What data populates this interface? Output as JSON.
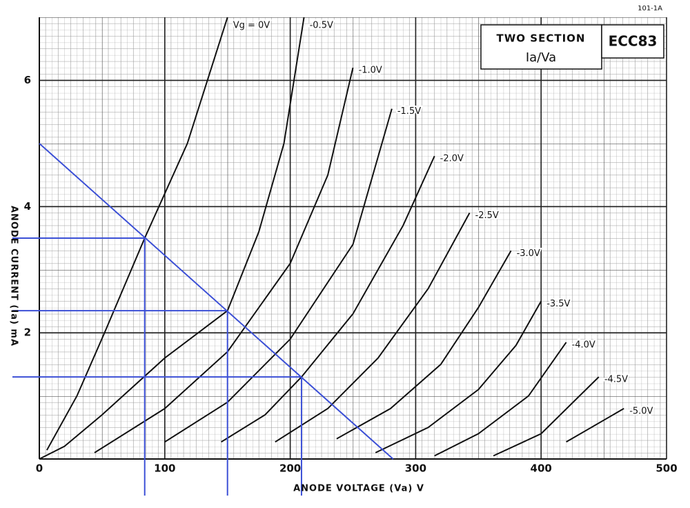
{
  "chart_data": {
    "type": "line",
    "code": "101-1A",
    "box": {
      "title": "TWO SECTION",
      "subtitle": "Ia/Va",
      "tube": "ECC83"
    },
    "xlabel": "ANODE VOLTAGE (Va) V",
    "ylabel": "ANODE CURRENT (Ia) mA",
    "xlim": [
      0,
      500
    ],
    "ylim": [
      0,
      7
    ],
    "xticks": [
      0,
      100,
      200,
      300,
      400,
      500
    ],
    "yticks": [
      2,
      4,
      6
    ],
    "grid": true,
    "series": [
      {
        "name": "Vg = 0V",
        "color": "#111111",
        "x": [
          6,
          30,
          52,
          84,
          118,
          134,
          150
        ],
        "values": [
          0.14,
          1.0,
          2.0,
          3.5,
          5.0,
          6.0,
          7.0
        ]
      },
      {
        "name": "-0.5V",
        "color": "#111111",
        "x": [
          0,
          20,
          50,
          100,
          150,
          175,
          195,
          211
        ],
        "values": [
          0,
          0.2,
          0.7,
          1.6,
          2.35,
          3.6,
          5.0,
          7.0
        ]
      },
      {
        "name": "-1.0V",
        "color": "#111111",
        "x": [
          44,
          100,
          150,
          200,
          230,
          250
        ],
        "values": [
          0.1,
          0.8,
          1.7,
          3.1,
          4.5,
          6.2
        ]
      },
      {
        "name": "-1.5V",
        "color": "#111111",
        "x": [
          100,
          150,
          200,
          250,
          281
        ],
        "values": [
          0.27,
          0.9,
          1.9,
          3.4,
          5.55
        ]
      },
      {
        "name": "-2.0V",
        "color": "#111111",
        "x": [
          145,
          180,
          209,
          250,
          290,
          315
        ],
        "values": [
          0.27,
          0.7,
          1.3,
          2.3,
          3.7,
          4.8
        ]
      },
      {
        "name": "-2.5V",
        "color": "#111111",
        "x": [
          188,
          230,
          270,
          310,
          343
        ],
        "values": [
          0.27,
          0.8,
          1.6,
          2.7,
          3.9
        ]
      },
      {
        "name": "-3.0V",
        "color": "#111111",
        "x": [
          237,
          280,
          320,
          350,
          376
        ],
        "values": [
          0.32,
          0.8,
          1.5,
          2.4,
          3.3
        ]
      },
      {
        "name": "-3.5V",
        "color": "#111111",
        "x": [
          268,
          310,
          350,
          380,
          400
        ],
        "values": [
          0.1,
          0.5,
          1.1,
          1.8,
          2.5
        ]
      },
      {
        "name": "-4.0V",
        "color": "#111111",
        "x": [
          315,
          350,
          390,
          420
        ],
        "values": [
          0.05,
          0.4,
          1.0,
          1.85
        ]
      },
      {
        "name": "-4.5V",
        "color": "#111111",
        "x": [
          362,
          400,
          446
        ],
        "values": [
          0.05,
          0.4,
          1.3
        ]
      },
      {
        "name": "-5.0V",
        "color": "#111111",
        "x": [
          420,
          466
        ],
        "values": [
          0.27,
          0.8
        ]
      }
    ],
    "load_line": {
      "color": "#3b4fd6",
      "x": [
        0,
        282
      ],
      "values": [
        5,
        0
      ]
    },
    "operating_points": {
      "color": "#3b4fd6",
      "x": [
        84,
        150,
        209
      ],
      "values": [
        3.5,
        2.35,
        1.3
      ]
    }
  }
}
